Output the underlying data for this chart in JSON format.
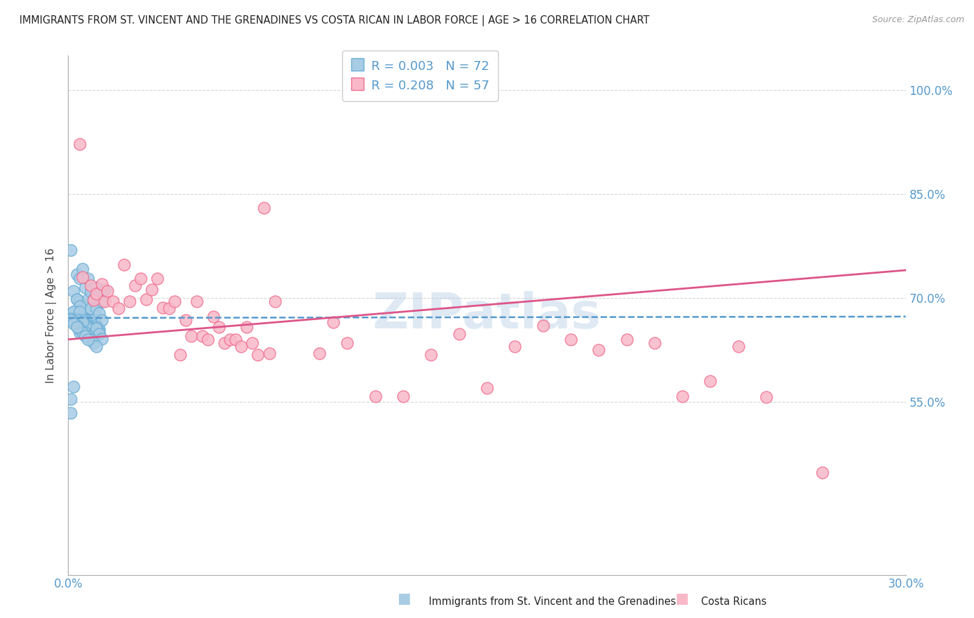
{
  "title": "IMMIGRANTS FROM ST. VINCENT AND THE GRENADINES VS COSTA RICAN IN LABOR FORCE | AGE > 16 CORRELATION CHART",
  "source": "Source: ZipAtlas.com",
  "ylabel": "In Labor Force | Age > 16",
  "xlim": [
    0.0,
    0.3
  ],
  "ylim": [
    0.3,
    1.05
  ],
  "ytick_values": [
    0.55,
    0.7,
    0.85,
    1.0
  ],
  "ytick_labels": [
    "55.0%",
    "70.0%",
    "85.0%",
    "100.0%"
  ],
  "xtick_values": [
    0.0,
    0.3
  ],
  "xtick_labels": [
    "0.0%",
    "30.0%"
  ],
  "blue_color": "#a8cce4",
  "blue_edge_color": "#6aaed6",
  "pink_color": "#f9b8c8",
  "pink_edge_color": "#f07090",
  "blue_line_color": "#5599cc",
  "pink_line_color": "#dd5588",
  "legend_label1": "R = 0.003   N = 72",
  "legend_label2": "R = 0.208   N = 57",
  "watermark": "ZIPatlas",
  "blue_scatter_x": [
    0.001,
    0.002,
    0.003,
    0.003,
    0.004,
    0.004,
    0.005,
    0.005,
    0.005,
    0.006,
    0.006,
    0.006,
    0.007,
    0.007,
    0.007,
    0.008,
    0.008,
    0.008,
    0.009,
    0.009,
    0.01,
    0.01,
    0.01,
    0.011,
    0.011,
    0.011,
    0.012,
    0.012,
    0.013,
    0.002,
    0.003,
    0.003,
    0.004,
    0.005,
    0.006,
    0.007,
    0.008,
    0.009,
    0.01,
    0.011,
    0.001,
    0.002,
    0.003,
    0.004,
    0.005,
    0.006,
    0.007,
    0.008,
    0.009,
    0.01,
    0.011,
    0.012,
    0.001,
    0.002,
    0.003,
    0.004,
    0.005,
    0.006,
    0.007,
    0.008,
    0.009,
    0.01,
    0.001,
    0.002,
    0.003,
    0.004,
    0.005,
    0.006,
    0.007,
    0.001,
    0.002,
    0.003
  ],
  "blue_scatter_y": [
    0.769,
    0.71,
    0.734,
    0.698,
    0.728,
    0.695,
    0.742,
    0.69,
    0.668,
    0.715,
    0.685,
    0.663,
    0.728,
    0.698,
    0.668,
    0.709,
    0.685,
    0.663,
    0.698,
    0.668,
    0.715,
    0.685,
    0.661,
    0.705,
    0.678,
    0.655,
    0.695,
    0.668,
    0.712,
    0.68,
    0.698,
    0.672,
    0.688,
    0.672,
    0.668,
    0.66,
    0.656,
    0.648,
    0.658,
    0.651,
    0.534,
    0.68,
    0.67,
    0.68,
    0.668,
    0.662,
    0.658,
    0.655,
    0.648,
    0.656,
    0.648,
    0.641,
    0.554,
    0.572,
    0.668,
    0.65,
    0.665,
    0.65,
    0.645,
    0.64,
    0.635,
    0.63,
    0.67,
    0.665,
    0.66,
    0.655,
    0.65,
    0.645,
    0.64,
    0.668,
    0.663,
    0.658
  ],
  "pink_scatter_x": [
    0.004,
    0.005,
    0.008,
    0.009,
    0.01,
    0.012,
    0.013,
    0.014,
    0.016,
    0.018,
    0.02,
    0.022,
    0.024,
    0.026,
    0.028,
    0.03,
    0.032,
    0.034,
    0.036,
    0.038,
    0.04,
    0.042,
    0.044,
    0.046,
    0.048,
    0.05,
    0.052,
    0.054,
    0.056,
    0.058,
    0.06,
    0.062,
    0.064,
    0.066,
    0.068,
    0.07,
    0.072,
    0.074,
    0.09,
    0.095,
    0.1,
    0.11,
    0.12,
    0.13,
    0.14,
    0.15,
    0.16,
    0.17,
    0.18,
    0.19,
    0.2,
    0.21,
    0.22,
    0.23,
    0.24,
    0.25,
    0.27
  ],
  "pink_scatter_y": [
    0.922,
    0.73,
    0.718,
    0.697,
    0.706,
    0.72,
    0.695,
    0.71,
    0.695,
    0.685,
    0.748,
    0.695,
    0.718,
    0.728,
    0.698,
    0.712,
    0.728,
    0.686,
    0.685,
    0.695,
    0.618,
    0.668,
    0.645,
    0.695,
    0.645,
    0.64,
    0.673,
    0.658,
    0.635,
    0.64,
    0.64,
    0.63,
    0.658,
    0.635,
    0.618,
    0.83,
    0.62,
    0.695,
    0.62,
    0.665,
    0.635,
    0.558,
    0.558,
    0.618,
    0.648,
    0.57,
    0.63,
    0.66,
    0.64,
    0.625,
    0.64,
    0.635,
    0.558,
    0.58,
    0.63,
    0.557,
    0.448
  ],
  "blue_trend_x": [
    0.0,
    0.3
  ],
  "blue_trend_y": [
    0.671,
    0.673
  ],
  "pink_trend_x": [
    0.0,
    0.3
  ],
  "pink_trend_y": [
    0.64,
    0.74
  ],
  "grid_color": "#cccccc",
  "background_color": "#ffffff",
  "text_color_blue": "#5599cc",
  "text_color_dark": "#222222",
  "axis_label_color": "#444444"
}
